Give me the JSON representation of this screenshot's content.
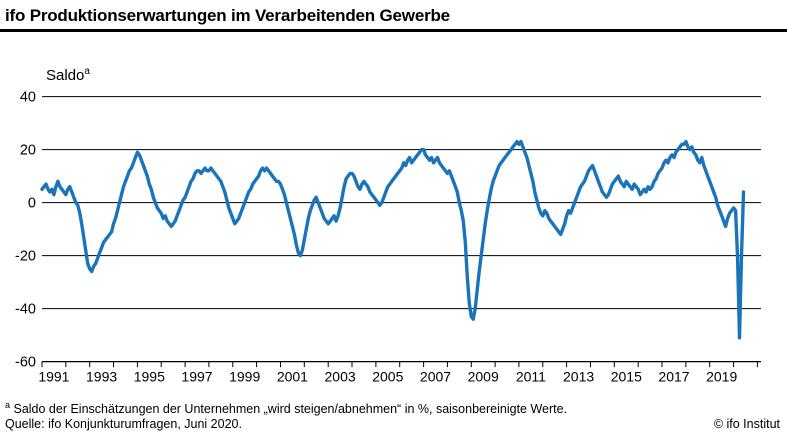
{
  "header": {
    "title": "ifo Produktionserwartungen im Verarbeitenden Gewerbe"
  },
  "chart_data": {
    "type": "line",
    "title": "ifo Produktionserwartungen im Verarbeitenden Gewerbe",
    "ylabel": "Saldo",
    "ylabel_marker": "a",
    "grid": "horizontal",
    "line_color": "#1b74ba",
    "y_ticks": [
      40,
      20,
      0,
      -20,
      -40,
      -60
    ],
    "ylim": [
      -60,
      45
    ],
    "x_axis_start_year": 1991,
    "x_axis_end": 2021.15,
    "x_tick_years_labeled": [
      1991,
      1993,
      1995,
      1997,
      1999,
      2001,
      2003,
      2005,
      2007,
      2009,
      2011,
      2013,
      2015,
      2017,
      2019
    ],
    "series": [
      {
        "name": "Produktionserwartungen (Saldo, saisonbereinigt)",
        "color": "#1b74ba",
        "frequency": "monthly",
        "start_year": 1991,
        "start_month": 1,
        "end_label": "Juni 2020",
        "values": [
          5,
          6,
          7,
          5,
          4,
          5,
          3,
          6,
          8,
          6,
          5,
          4,
          3,
          5,
          6,
          4,
          2,
          0,
          -1,
          -4,
          -8,
          -13,
          -18,
          -23,
          -25,
          -26,
          -24,
          -23,
          -21,
          -19,
          -17,
          -15,
          -14,
          -13,
          -12,
          -11,
          -8,
          -6,
          -3,
          0,
          3,
          6,
          8,
          10,
          12,
          13,
          15,
          17,
          19,
          18,
          16,
          14,
          12,
          10,
          7,
          5,
          2,
          0,
          -2,
          -3,
          -4,
          -6,
          -5,
          -7,
          -8,
          -9,
          -8,
          -7,
          -5,
          -3,
          -1,
          1,
          2,
          4,
          6,
          8,
          9,
          11,
          12,
          12,
          11,
          12,
          13,
          12,
          12,
          13,
          12,
          11,
          10,
          9,
          8,
          6,
          4,
          1,
          -2,
          -4,
          -6,
          -8,
          -7,
          -6,
          -4,
          -2,
          0,
          2,
          4,
          5,
          7,
          8,
          9,
          10,
          12,
          13,
          12,
          13,
          12,
          11,
          10,
          9,
          8,
          8,
          7,
          5,
          3,
          0,
          -3,
          -6,
          -9,
          -12,
          -16,
          -19,
          -20,
          -18,
          -14,
          -10,
          -6,
          -3,
          -1,
          1,
          2,
          0,
          -2,
          -4,
          -6,
          -7,
          -8,
          -7,
          -6,
          -5,
          -7,
          -5,
          -2,
          2,
          6,
          9,
          10,
          11,
          11,
          10,
          8,
          6,
          5,
          7,
          8,
          7,
          6,
          4,
          3,
          2,
          1,
          0,
          -1,
          0,
          2,
          4,
          6,
          7,
          8,
          9,
          10,
          11,
          12,
          13,
          15,
          14,
          16,
          17,
          15,
          16,
          17,
          18,
          19,
          20,
          20,
          18,
          17,
          16,
          17,
          15,
          16,
          17,
          15,
          14,
          13,
          12,
          11,
          12,
          10,
          8,
          6,
          4,
          0,
          -3,
          -7,
          -15,
          -28,
          -38,
          -43,
          -44,
          -40,
          -33,
          -26,
          -20,
          -14,
          -8,
          -3,
          1,
          5,
          8,
          10,
          12,
          14,
          15,
          16,
          17,
          18,
          19,
          20,
          21,
          22,
          23,
          22,
          23,
          21,
          19,
          17,
          14,
          11,
          8,
          4,
          1,
          -2,
          -4,
          -5,
          -3,
          -4,
          -6,
          -7,
          -8,
          -9,
          -10,
          -11,
          -12,
          -10,
          -8,
          -5,
          -3,
          -4,
          -2,
          0,
          2,
          4,
          6,
          7,
          8,
          10,
          12,
          13,
          14,
          12,
          10,
          8,
          6,
          4,
          3,
          2,
          3,
          5,
          7,
          8,
          9,
          10,
          8,
          7,
          6,
          8,
          7,
          6,
          5,
          7,
          6,
          5,
          3,
          4,
          5,
          4,
          6,
          5,
          6,
          8,
          9,
          11,
          12,
          13,
          15,
          16,
          15,
          17,
          18,
          17,
          19,
          20,
          21,
          22,
          22,
          23,
          21,
          20,
          21,
          19,
          18,
          16,
          15,
          17,
          14,
          12,
          10,
          8,
          6,
          4,
          2,
          -1,
          -3,
          -5,
          -7,
          -9,
          -6,
          -4,
          -3,
          -2,
          -3,
          -21,
          -51,
          -20,
          4
        ]
      }
    ]
  },
  "footnotes": {
    "marker": "a",
    "footnote_text": " Saldo der Einschätzungen der Unternehmen „wird steigen/abnehmen“ in %, saisonbereinigte Werte.",
    "source": "Quelle: ifo Konjunkturumfragen, Juni 2020.",
    "copyright": "© ifo Institut"
  }
}
